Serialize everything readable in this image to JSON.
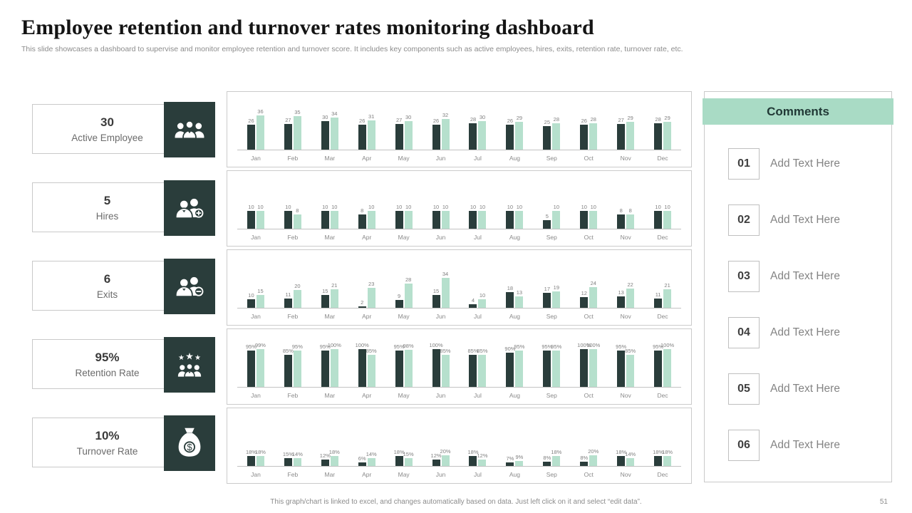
{
  "header": {
    "title": "Employee retention and turnover rates monitoring dashboard",
    "subtitle": "This slide showcases a dashboard to supervise and monitor employee retention and turnover score. It includes key components such as active employees, hires, exits, retention rate, turnover rate, etc."
  },
  "colors": {
    "dark_teal": "#2a3d3b",
    "mint": "#b6e0cd",
    "comments_header_bg": "#a9dbc5",
    "panel_border": "#c9c9c9",
    "muted_text": "#7f7f7f"
  },
  "kpi_cards": [
    {
      "value": "30",
      "label": "Active Employee",
      "icon": "users-group-icon"
    },
    {
      "value": "5",
      "label": "Hires",
      "icon": "user-plus-icon"
    },
    {
      "value": "6",
      "label": "Exits",
      "icon": "user-minus-icon"
    },
    {
      "value": "95%",
      "label": "Retention Rate",
      "icon": "stars-users-icon"
    },
    {
      "value": "10%",
      "label": "Turnover Rate",
      "icon": "money-bag-icon"
    }
  ],
  "icons": {
    "dollar_glyph": "$"
  },
  "chart_data": [
    {
      "type": "bar",
      "name": "active-employees-by-month",
      "categories": [
        "Jan",
        "Feb",
        "Mar",
        "Apr",
        "May",
        "Jun",
        "Jul",
        "Aug",
        "Sep",
        "Oct",
        "Nov",
        "Dec"
      ],
      "series": [
        {
          "name": "series-dark",
          "color": "#2a3d3b",
          "values": [
            26,
            27,
            30,
            26,
            27,
            26,
            28,
            26,
            25,
            26,
            27,
            28
          ]
        },
        {
          "name": "series-light",
          "color": "#b6e0cd",
          "values": [
            36,
            35,
            34,
            31,
            30,
            32,
            30,
            29,
            28,
            28,
            29,
            29
          ]
        }
      ],
      "value_suffix": "",
      "ylim": [
        0,
        60
      ],
      "grid": false,
      "legend": false,
      "data_labels": true
    },
    {
      "type": "bar",
      "name": "hires-by-month",
      "categories": [
        "Jan",
        "Feb",
        "Mar",
        "Apr",
        "May",
        "Jun",
        "Jul",
        "Aug",
        "Sep",
        "Oct",
        "Nov",
        "Dec"
      ],
      "series": [
        {
          "name": "series-dark",
          "color": "#2a3d3b",
          "values": [
            10,
            10,
            10,
            8,
            10,
            10,
            10,
            10,
            5,
            10,
            8,
            10
          ]
        },
        {
          "name": "series-light",
          "color": "#b6e0cd",
          "values": [
            10,
            8,
            10,
            10,
            10,
            10,
            10,
            10,
            10,
            10,
            8,
            10
          ]
        }
      ],
      "value_suffix": "",
      "ylim": [
        0,
        32
      ],
      "grid": false,
      "legend": false,
      "data_labels": true
    },
    {
      "type": "bar",
      "name": "exits-by-month",
      "categories": [
        "Jan",
        "Feb",
        "Mar",
        "Apr",
        "May",
        "Jun",
        "Jul",
        "Aug",
        "Sep",
        "Oct",
        "Nov",
        "Dec"
      ],
      "series": [
        {
          "name": "series-dark",
          "color": "#2a3d3b",
          "values": [
            10,
            11,
            15,
            2,
            9,
            15,
            4,
            18,
            17,
            12,
            13,
            11
          ]
        },
        {
          "name": "series-light",
          "color": "#b6e0cd",
          "values": [
            15,
            20,
            21,
            23,
            28,
            34,
            10,
            13,
            19,
            24,
            22,
            21
          ]
        }
      ],
      "value_suffix": "",
      "ylim": [
        0,
        65
      ],
      "grid": false,
      "legend": false,
      "data_labels": true
    },
    {
      "type": "bar",
      "name": "retention-rate-by-month",
      "categories": [
        "Jan",
        "Feb",
        "Mar",
        "Apr",
        "May",
        "Jun",
        "Jul",
        "Aug",
        "Sep",
        "Oct",
        "Nov",
        "Dec"
      ],
      "series": [
        {
          "name": "series-dark",
          "color": "#2a3d3b",
          "values": [
            95,
            85,
            95,
            100,
            95,
            100,
            85,
            90,
            95,
            100,
            95,
            95
          ]
        },
        {
          "name": "series-light",
          "color": "#b6e0cd",
          "values": [
            99,
            95,
            100,
            85,
            98,
            85,
            85,
            95,
            95,
            100,
            85,
            100
          ]
        }
      ],
      "value_suffix": "%",
      "ylim": [
        0,
        150
      ],
      "grid": false,
      "legend": false,
      "data_labels": true
    },
    {
      "type": "bar",
      "name": "turnover-rate-by-month",
      "categories": [
        "Jan",
        "Feb",
        "Mar",
        "Apr",
        "May",
        "Jun",
        "Jul",
        "Aug",
        "Sep",
        "Oct",
        "Nov",
        "Dec"
      ],
      "series": [
        {
          "name": "series-dark",
          "color": "#2a3d3b",
          "values": [
            18,
            15,
            12,
            6,
            18,
            12,
            18,
            7,
            8,
            8,
            18,
            18
          ]
        },
        {
          "name": "series-light",
          "color": "#b6e0cd",
          "values": [
            18,
            14,
            18,
            14,
            15,
            20,
            12,
            9,
            18,
            20,
            14,
            18
          ]
        }
      ],
      "value_suffix": "%",
      "ylim": [
        0,
        105
      ],
      "grid": false,
      "legend": false,
      "data_labels": true
    }
  ],
  "comments": {
    "title": "Comments",
    "items": [
      {
        "number": "01",
        "text": "Add Text Here"
      },
      {
        "number": "02",
        "text": "Add Text Here"
      },
      {
        "number": "03",
        "text": "Add Text Here"
      },
      {
        "number": "04",
        "text": "Add Text Here"
      },
      {
        "number": "05",
        "text": "Add Text Here"
      },
      {
        "number": "06",
        "text": "Add Text Here"
      }
    ]
  },
  "footer": {
    "note": "This graph/chart is linked to excel, and changes automatically based on data. Just left click on it and select “edit data”.",
    "page_number": "51"
  }
}
